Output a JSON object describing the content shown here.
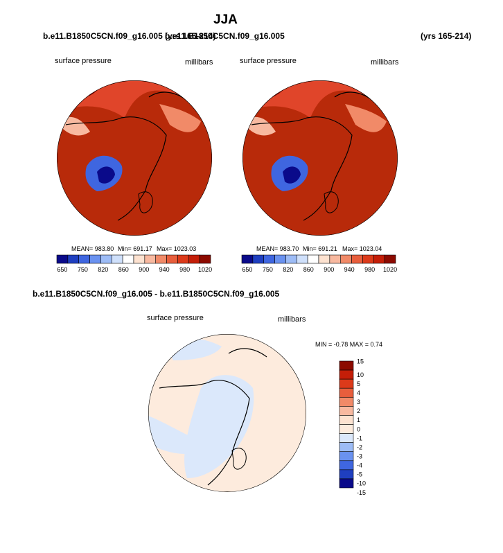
{
  "title": "JJA",
  "panels": [
    {
      "case_name": "b.e11.B1850C5CN.f09_g16.005",
      "years": "(yrs 165-214)",
      "variable": "surface pressure",
      "units": "millibars",
      "mean_text": "MEAN= 983.80",
      "min_text": "Min= 691.17",
      "max_text": "Max= 1023.03"
    },
    {
      "case_name": "b.e11.B1850C5CN.f09_g16.005",
      "years": "(yrs 165-214)",
      "variable": "surface pressure",
      "units": "millibars",
      "mean_text": "MEAN= 983.70",
      "min_text": "Min= 691.21",
      "max_text": "Max= 1023.04"
    }
  ],
  "top_colorbar": {
    "colors": [
      "#0a0a8a",
      "#1f3fc0",
      "#3f66e0",
      "#6a92f0",
      "#9dbcf6",
      "#cfe0fb",
      "#ffffff",
      "#fde2d0",
      "#f8b9a0",
      "#f18a68",
      "#e85e3c",
      "#dc3a1a",
      "#c41e08",
      "#8c0a00"
    ],
    "labels": [
      "650",
      "750",
      "820",
      "860",
      "900",
      "940",
      "980",
      "1020"
    ]
  },
  "diff_panel": {
    "title": "b.e11.B1850C5CN.f09_g16.005 - b.e11.B1850C5CN.f09_g16.005",
    "variable": "surface pressure",
    "units": "millibars",
    "minmax_text": "MIN =  -0.78 MAX =   0.74"
  },
  "diff_colorbar": {
    "colors": [
      "#8c0a00",
      "#c41e08",
      "#dc3a1a",
      "#e85e3c",
      "#f18a68",
      "#f8b9a0",
      "#fde2d0",
      "#fdebdd",
      "#dbe8fb",
      "#9dbcf6",
      "#6a92f0",
      "#3f66e0",
      "#1f3fc0",
      "#0a0a8a"
    ],
    "labels": [
      "15",
      "10",
      "5",
      "4",
      "3",
      "2",
      "1",
      "0",
      "-1",
      "-2",
      "-3",
      "-4",
      "-5",
      "-10",
      "-15"
    ]
  }
}
